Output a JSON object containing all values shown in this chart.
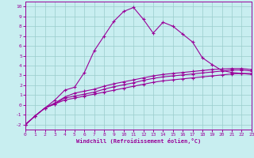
{
  "xlabel": "Windchill (Refroidissement éolien,°C)",
  "bg_color": "#c8eef0",
  "line_color": "#990099",
  "grid_color": "#99cccc",
  "xlim": [
    0,
    23
  ],
  "ylim": [
    -2.5,
    10.5
  ],
  "xticks": [
    0,
    1,
    2,
    3,
    4,
    5,
    6,
    7,
    8,
    9,
    10,
    11,
    12,
    13,
    14,
    15,
    16,
    17,
    18,
    19,
    20,
    21,
    22,
    23
  ],
  "yticks": [
    -2,
    -1,
    0,
    1,
    2,
    3,
    4,
    5,
    6,
    7,
    8,
    9,
    10
  ],
  "line1_x": [
    0,
    1,
    2,
    3,
    4,
    5,
    6,
    7,
    8,
    9,
    10,
    11,
    12,
    13,
    14,
    15,
    16,
    17,
    18,
    19,
    20,
    21,
    22,
    23
  ],
  "line1_y": [
    -2.0,
    -1.1,
    -0.3,
    0.1,
    0.5,
    0.7,
    0.9,
    1.1,
    1.3,
    1.5,
    1.7,
    1.9,
    2.1,
    2.3,
    2.45,
    2.55,
    2.65,
    2.75,
    2.85,
    2.95,
    3.05,
    3.15,
    3.2,
    3.2
  ],
  "line2_x": [
    0,
    1,
    2,
    3,
    4,
    5,
    6,
    7,
    8,
    9,
    10,
    11,
    12,
    13,
    14,
    15,
    16,
    17,
    18,
    19,
    20,
    21,
    22,
    23
  ],
  "line2_y": [
    -2.0,
    -1.1,
    -0.3,
    0.1,
    0.7,
    0.9,
    1.1,
    1.3,
    1.6,
    1.85,
    2.05,
    2.25,
    2.5,
    2.7,
    2.85,
    2.95,
    3.05,
    3.15,
    3.25,
    3.35,
    3.45,
    3.55,
    3.55,
    3.45
  ],
  "line3_x": [
    0,
    1,
    2,
    3,
    4,
    5,
    6,
    7,
    8,
    9,
    10,
    11,
    12,
    13,
    14,
    15,
    16,
    17,
    18,
    19,
    20,
    21,
    22,
    23
  ],
  "line3_y": [
    -2.0,
    -1.1,
    -0.3,
    0.5,
    1.5,
    1.8,
    3.3,
    5.5,
    7.0,
    8.5,
    9.5,
    9.9,
    8.7,
    7.3,
    8.4,
    8.0,
    7.2,
    6.4,
    4.8,
    4.1,
    3.5,
    3.3,
    3.2,
    3.1
  ],
  "line4_x": [
    0,
    1,
    2,
    3,
    4,
    5,
    6,
    7,
    8,
    9,
    10,
    11,
    12,
    13,
    14,
    15,
    16,
    17,
    18,
    19,
    20,
    21,
    22,
    23
  ],
  "line4_y": [
    -2.0,
    -1.1,
    -0.3,
    0.2,
    0.8,
    1.2,
    1.4,
    1.6,
    1.9,
    2.15,
    2.35,
    2.55,
    2.75,
    2.95,
    3.1,
    3.2,
    3.3,
    3.4,
    3.5,
    3.6,
    3.65,
    3.7,
    3.7,
    3.6
  ]
}
